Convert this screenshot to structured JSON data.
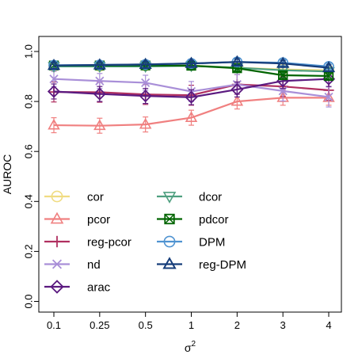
{
  "chart_data": {
    "type": "line",
    "xlabel": "σ",
    "xlabel_superscript": "2",
    "ylabel": "AUROC",
    "ylim": [
      0.0,
      1.0
    ],
    "yticks": [
      "0.0",
      "0.2",
      "0.4",
      "0.6",
      "0.8",
      "1.0"
    ],
    "yticks_values": [
      0.0,
      0.2,
      0.4,
      0.6,
      0.8,
      1.0
    ],
    "categories": [
      "0.1",
      "0.25",
      "0.5",
      "1",
      "2",
      "3",
      "4"
    ],
    "legend_position": "bottom-left",
    "grid": false,
    "series": [
      {
        "name": "cor",
        "color": "#f0dc82",
        "marker": "circle",
        "values": [
          0.941,
          0.941,
          0.943,
          0.944,
          0.935,
          0.928,
          0.925
        ],
        "err": [
          0.012,
          0.012,
          0.012,
          0.012,
          0.012,
          0.012,
          0.012
        ]
      },
      {
        "name": "pcor",
        "color": "#f08080",
        "marker": "triangle-up",
        "values": [
          0.705,
          0.703,
          0.708,
          0.735,
          0.8,
          0.815,
          0.815
        ],
        "err": [
          0.03,
          0.03,
          0.03,
          0.03,
          0.03,
          0.03,
          0.03
        ]
      },
      {
        "name": "reg-pcor",
        "color": "#b03060",
        "marker": "plus",
        "values": [
          0.838,
          0.837,
          0.828,
          0.825,
          0.868,
          0.86,
          0.845
        ],
        "err": [
          0.04,
          0.04,
          0.04,
          0.04,
          0.04,
          0.04,
          0.04
        ]
      },
      {
        "name": "nd",
        "color": "#a98fd8",
        "marker": "cross",
        "values": [
          0.89,
          0.882,
          0.875,
          0.84,
          0.868,
          0.842,
          0.818
        ],
        "err": [
          0.03,
          0.03,
          0.03,
          0.04,
          0.04,
          0.04,
          0.04
        ]
      },
      {
        "name": "arac",
        "color": "#5b1a80",
        "marker": "diamond",
        "values": [
          0.84,
          0.83,
          0.822,
          0.817,
          0.848,
          0.882,
          0.89
        ],
        "err": [
          0.03,
          0.03,
          0.03,
          0.03,
          0.03,
          0.03,
          0.03
        ]
      },
      {
        "name": "dcor",
        "color": "#4e9f7f",
        "marker": "triangle-down",
        "values": [
          0.94,
          0.94,
          0.94,
          0.943,
          0.935,
          0.925,
          0.92
        ],
        "err": [
          0.012,
          0.012,
          0.012,
          0.012,
          0.012,
          0.012,
          0.012
        ]
      },
      {
        "name": "pdcor",
        "color": "#006400",
        "marker": "square-x",
        "values": [
          0.944,
          0.944,
          0.944,
          0.943,
          0.933,
          0.905,
          0.902
        ],
        "err": [
          0.012,
          0.012,
          0.012,
          0.012,
          0.012,
          0.012,
          0.012
        ]
      },
      {
        "name": "DPM",
        "color": "#4f93d1",
        "marker": "circle",
        "values": [
          0.945,
          0.946,
          0.948,
          0.952,
          0.958,
          0.955,
          0.94
        ],
        "err": [
          0.012,
          0.012,
          0.012,
          0.012,
          0.012,
          0.012,
          0.012
        ]
      },
      {
        "name": "reg-DPM",
        "color": "#163d7a",
        "marker": "triangle-up-open",
        "values": [
          0.944,
          0.946,
          0.948,
          0.952,
          0.958,
          0.952,
          0.935
        ],
        "err": [
          0.012,
          0.012,
          0.012,
          0.012,
          0.012,
          0.012,
          0.012
        ]
      }
    ]
  }
}
